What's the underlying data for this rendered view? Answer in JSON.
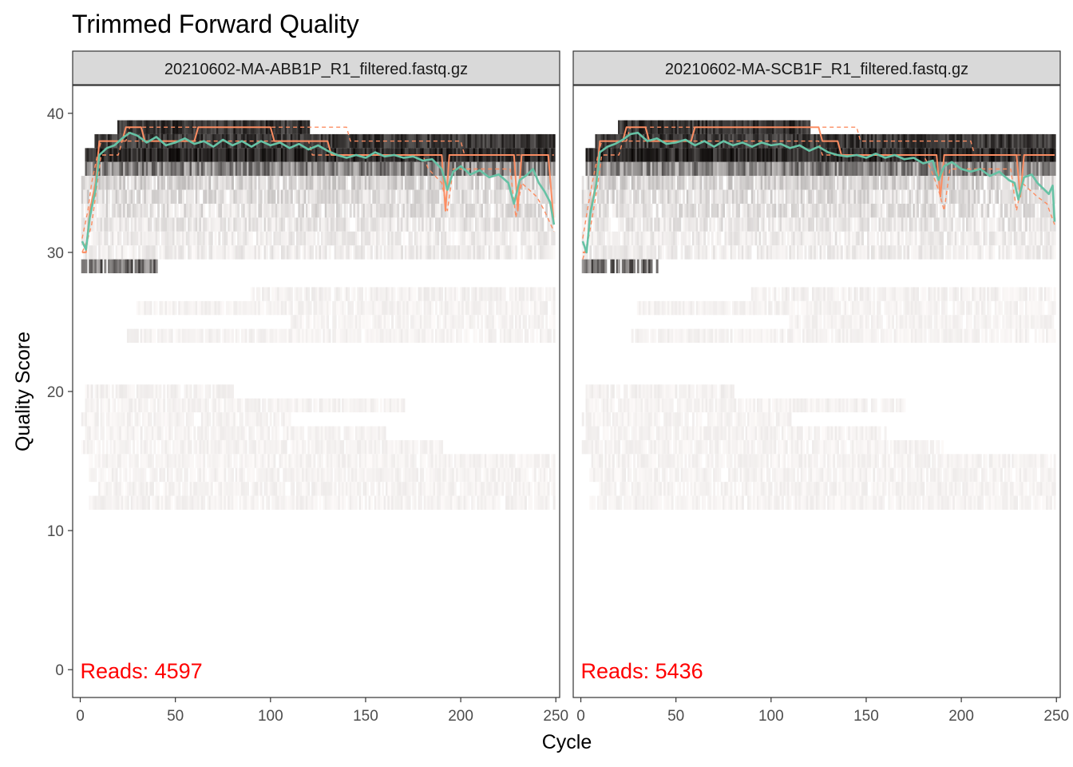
{
  "chart_data": {
    "type": "heatmap",
    "title": "Trimmed Forward Quality",
    "xlabel": "Cycle",
    "ylabel": "Quality Score",
    "xlim": [
      -4,
      252
    ],
    "ylim": [
      -2,
      42
    ],
    "x_ticks": [
      0,
      50,
      100,
      150,
      200,
      250
    ],
    "y_ticks": [
      0,
      10,
      20,
      30,
      40
    ],
    "grid": false,
    "legend": "none",
    "reads_prefix": "Reads:",
    "colors": {
      "mean_line": "#66C2A5",
      "quartile_lines": "#FC8D62",
      "reads_text": "#FF0000",
      "strip_fill": "#D9D9D9"
    },
    "panels": [
      {
        "label": "20210602-MA-ABB1P_R1_filtered.fastq.gz",
        "reads": 4597,
        "mean_quality": [
          [
            1,
            30.8
          ],
          [
            3,
            30.2
          ],
          [
            5,
            32.5
          ],
          [
            8,
            34.5
          ],
          [
            10,
            37.0
          ],
          [
            14,
            37.5
          ],
          [
            18,
            37.7
          ],
          [
            22,
            38.2
          ],
          [
            26,
            38.6
          ],
          [
            30,
            38.4
          ],
          [
            35,
            37.9
          ],
          [
            40,
            38.3
          ],
          [
            45,
            37.7
          ],
          [
            50,
            37.9
          ],
          [
            55,
            38.2
          ],
          [
            60,
            37.8
          ],
          [
            65,
            38.0
          ],
          [
            70,
            37.6
          ],
          [
            75,
            38.1
          ],
          [
            80,
            37.7
          ],
          [
            85,
            38.0
          ],
          [
            90,
            37.6
          ],
          [
            95,
            38.0
          ],
          [
            100,
            37.7
          ],
          [
            105,
            37.9
          ],
          [
            110,
            37.5
          ],
          [
            115,
            37.8
          ],
          [
            120,
            37.4
          ],
          [
            125,
            37.7
          ],
          [
            130,
            37.3
          ],
          [
            135,
            37.0
          ],
          [
            140,
            36.8
          ],
          [
            145,
            37.0
          ],
          [
            150,
            36.8
          ],
          [
            155,
            37.2
          ],
          [
            160,
            36.9
          ],
          [
            165,
            37.0
          ],
          [
            170,
            36.8
          ],
          [
            175,
            36.9
          ],
          [
            180,
            36.6
          ],
          [
            185,
            36.7
          ],
          [
            190,
            36.0
          ],
          [
            193,
            34.5
          ],
          [
            196,
            35.8
          ],
          [
            200,
            36.2
          ],
          [
            205,
            35.6
          ],
          [
            210,
            35.9
          ],
          [
            215,
            35.4
          ],
          [
            220,
            35.6
          ],
          [
            225,
            35.0
          ],
          [
            228,
            33.5
          ],
          [
            231,
            35.2
          ],
          [
            235,
            35.6
          ],
          [
            238,
            36.0
          ],
          [
            241,
            35.0
          ],
          [
            244,
            34.4
          ],
          [
            247,
            33.6
          ],
          [
            249,
            32.0
          ]
        ],
        "median_quality": [
          [
            1,
            30.0
          ],
          [
            3,
            30.0
          ],
          [
            5,
            33.0
          ],
          [
            8,
            35.0
          ],
          [
            10,
            38.0
          ],
          [
            22,
            38.0
          ],
          [
            24,
            39.0
          ],
          [
            32,
            39.0
          ],
          [
            34,
            38.0
          ],
          [
            60,
            38.0
          ],
          [
            62,
            39.0
          ],
          [
            100,
            39.0
          ],
          [
            102,
            38.0
          ],
          [
            130,
            38.0
          ],
          [
            132,
            37.0
          ],
          [
            190,
            37.0
          ],
          [
            192,
            33.0
          ],
          [
            194,
            37.0
          ],
          [
            228,
            37.0
          ],
          [
            230,
            33.0
          ],
          [
            232,
            37.0
          ],
          [
            246,
            37.0
          ],
          [
            249,
            32.0
          ]
        ],
        "q25_quality": [
          [
            1,
            30.0
          ],
          [
            4,
            31.0
          ],
          [
            6,
            32.0
          ],
          [
            9,
            35.0
          ],
          [
            11,
            37.0
          ],
          [
            20,
            37.0
          ],
          [
            22,
            38.0
          ],
          [
            120,
            38.0
          ],
          [
            122,
            37.0
          ],
          [
            180,
            37.0
          ],
          [
            183,
            36.0
          ],
          [
            190,
            35.0
          ],
          [
            193,
            33.0
          ],
          [
            196,
            36.0
          ],
          [
            226,
            36.0
          ],
          [
            229,
            32.5
          ],
          [
            232,
            35.0
          ],
          [
            240,
            34.0
          ],
          [
            244,
            33.0
          ],
          [
            249,
            31.5
          ]
        ],
        "q75_quality": [
          [
            1,
            31.0
          ],
          [
            4,
            33.0
          ],
          [
            6,
            35.0
          ],
          [
            9,
            37.0
          ],
          [
            11,
            38.0
          ],
          [
            24,
            38.0
          ],
          [
            26,
            39.0
          ],
          [
            140,
            39.0
          ],
          [
            142,
            38.0
          ],
          [
            200,
            38.0
          ],
          [
            202,
            37.0
          ],
          [
            249,
            37.0
          ]
        ]
      },
      {
        "label": "20210602-MA-SCB1F_R1_filtered.fastq.gz",
        "reads": 5436,
        "mean_quality": [
          [
            1,
            30.8
          ],
          [
            3,
            30.0
          ],
          [
            5,
            32.8
          ],
          [
            8,
            34.8
          ],
          [
            10,
            37.2
          ],
          [
            14,
            37.6
          ],
          [
            18,
            37.8
          ],
          [
            22,
            38.1
          ],
          [
            26,
            38.5
          ],
          [
            30,
            38.6
          ],
          [
            35,
            38.0
          ],
          [
            40,
            38.2
          ],
          [
            45,
            37.8
          ],
          [
            50,
            37.9
          ],
          [
            55,
            38.1
          ],
          [
            60,
            37.7
          ],
          [
            65,
            38.0
          ],
          [
            70,
            37.6
          ],
          [
            75,
            38.0
          ],
          [
            80,
            37.7
          ],
          [
            85,
            37.9
          ],
          [
            90,
            37.6
          ],
          [
            95,
            37.9
          ],
          [
            100,
            37.7
          ],
          [
            105,
            37.8
          ],
          [
            110,
            37.5
          ],
          [
            115,
            37.7
          ],
          [
            120,
            37.3
          ],
          [
            125,
            37.6
          ],
          [
            130,
            37.2
          ],
          [
            135,
            37.0
          ],
          [
            140,
            36.9
          ],
          [
            145,
            37.0
          ],
          [
            150,
            36.8
          ],
          [
            155,
            37.1
          ],
          [
            160,
            36.8
          ],
          [
            165,
            37.0
          ],
          [
            170,
            36.7
          ],
          [
            175,
            36.8
          ],
          [
            180,
            36.4
          ],
          [
            185,
            36.6
          ],
          [
            188,
            35.2
          ],
          [
            191,
            36.2
          ],
          [
            195,
            36.5
          ],
          [
            200,
            36.0
          ],
          [
            205,
            35.8
          ],
          [
            210,
            36.0
          ],
          [
            215,
            35.5
          ],
          [
            220,
            35.8
          ],
          [
            225,
            35.2
          ],
          [
            228,
            35.0
          ],
          [
            230,
            33.8
          ],
          [
            233,
            35.4
          ],
          [
            237,
            35.6
          ],
          [
            240,
            35.0
          ],
          [
            243,
            34.6
          ],
          [
            246,
            34.2
          ],
          [
            248,
            34.8
          ],
          [
            249,
            32.2
          ]
        ],
        "median_quality": [
          [
            1,
            30.0
          ],
          [
            3,
            30.0
          ],
          [
            5,
            33.0
          ],
          [
            8,
            35.0
          ],
          [
            10,
            38.0
          ],
          [
            22,
            38.0
          ],
          [
            24,
            39.0
          ],
          [
            34,
            39.0
          ],
          [
            36,
            38.0
          ],
          [
            58,
            38.0
          ],
          [
            60,
            39.0
          ],
          [
            125,
            39.0
          ],
          [
            127,
            38.0
          ],
          [
            135,
            38.0
          ],
          [
            137,
            37.0
          ],
          [
            187,
            37.0
          ],
          [
            189,
            34.0
          ],
          [
            191,
            37.0
          ],
          [
            229,
            37.0
          ],
          [
            231,
            34.0
          ],
          [
            233,
            37.0
          ],
          [
            249,
            37.0
          ]
        ],
        "q25_quality": [
          [
            1,
            29.5
          ],
          [
            4,
            31.0
          ],
          [
            6,
            32.5
          ],
          [
            9,
            35.0
          ],
          [
            11,
            37.0
          ],
          [
            20,
            37.0
          ],
          [
            22,
            38.0
          ],
          [
            125,
            38.0
          ],
          [
            127,
            37.0
          ],
          [
            180,
            37.0
          ],
          [
            184,
            36.0
          ],
          [
            188,
            34.5
          ],
          [
            191,
            33.0
          ],
          [
            194,
            36.0
          ],
          [
            226,
            36.0
          ],
          [
            229,
            33.0
          ],
          [
            232,
            35.0
          ],
          [
            240,
            34.0
          ],
          [
            245,
            33.5
          ],
          [
            249,
            32.0
          ]
        ],
        "q75_quality": [
          [
            1,
            31.0
          ],
          [
            4,
            33.5
          ],
          [
            6,
            35.0
          ],
          [
            9,
            37.0
          ],
          [
            11,
            38.0
          ],
          [
            24,
            38.0
          ],
          [
            26,
            39.0
          ],
          [
            145,
            39.0
          ],
          [
            147,
            38.0
          ],
          [
            205,
            38.0
          ],
          [
            207,
            37.0
          ],
          [
            249,
            37.0
          ]
        ]
      }
    ]
  }
}
